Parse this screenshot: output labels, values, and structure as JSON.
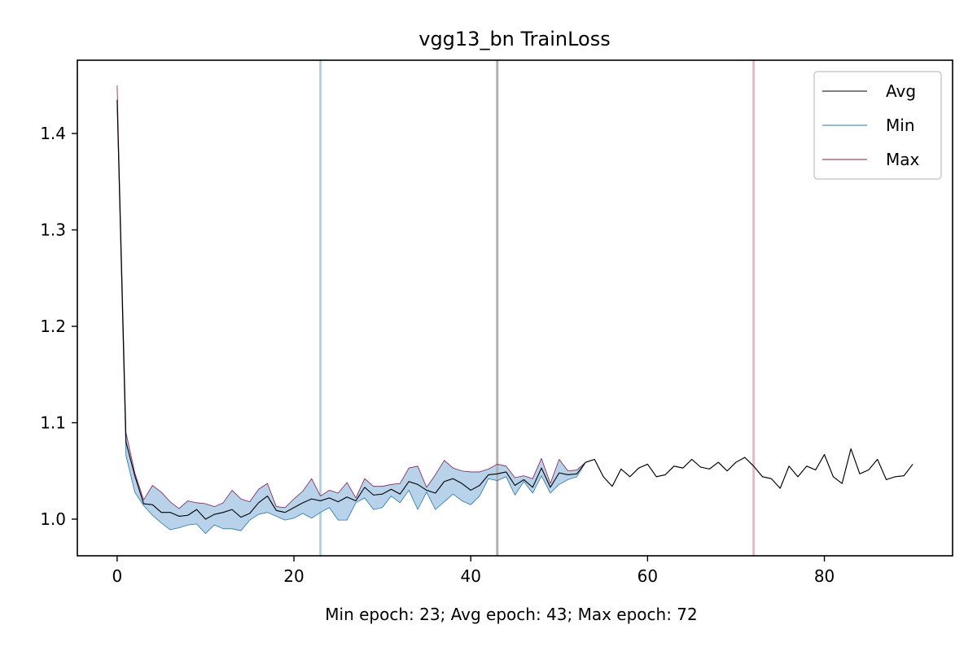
{
  "chart_data": {
    "type": "line",
    "title": "vgg13_bn TrainLoss",
    "xlabel": "Min epoch: 23; Avg epoch: 43; Max epoch: 72",
    "ylabel": "",
    "xlim": [
      -4.5,
      94.5
    ],
    "ylim": [
      0.962,
      1.476
    ],
    "xticks": [
      0,
      20,
      40,
      60,
      80
    ],
    "yticks": [
      1.0,
      1.1,
      1.2,
      1.3,
      1.4
    ],
    "ytick_labels": [
      "1.0",
      "1.1",
      "1.2",
      "1.3",
      "1.4"
    ],
    "grid": false,
    "legend_position": "top-right",
    "colors": {
      "avg": "#000000",
      "min": "#1f77b4",
      "max": "#8b1a4a",
      "band": "#b8d3e9",
      "vline_min": "#b3d1e6",
      "vline_avg": "#b0b0b0",
      "vline_max": "#e6b8c8"
    },
    "vlines": [
      {
        "name": "Min epoch",
        "x": 23
      },
      {
        "name": "Avg epoch",
        "x": 43
      },
      {
        "name": "Max epoch",
        "x": 72
      }
    ],
    "series": [
      {
        "name": "Avg",
        "values": [
          1.435,
          1.08,
          1.045,
          1.016,
          1.015,
          1.007,
          1.007,
          1.003,
          1.004,
          1.01,
          1.0,
          1.005,
          1.007,
          1.01,
          1.002,
          1.006,
          1.017,
          1.024,
          1.009,
          1.007,
          1.012,
          1.017,
          1.021,
          1.019,
          1.022,
          1.018,
          1.023,
          1.019,
          1.033,
          1.025,
          1.026,
          1.031,
          1.026,
          1.039,
          1.036,
          1.03,
          1.027,
          1.039,
          1.042,
          1.037,
          1.03,
          1.035,
          1.046,
          1.047,
          1.049,
          1.035,
          1.041,
          1.033,
          1.053,
          1.033,
          1.048,
          1.046,
          1.047,
          1.059,
          1.062,
          1.044,
          1.034,
          1.052,
          1.044,
          1.053,
          1.057,
          1.044,
          1.046,
          1.055,
          1.053,
          1.062,
          1.054,
          1.052,
          1.059,
          1.05,
          1.059,
          1.064,
          1.055,
          1.044,
          1.042,
          1.032,
          1.055,
          1.044,
          1.055,
          1.051,
          1.067,
          1.044,
          1.037,
          1.073,
          1.047,
          1.051,
          1.062,
          1.041,
          1.044,
          1.045,
          1.057
        ]
      },
      {
        "name": "Min",
        "values": [
          1.432,
          1.066,
          1.028,
          1.014,
          1.004,
          0.996,
          0.989,
          0.991,
          0.994,
          0.995,
          0.985,
          0.994,
          0.99,
          0.99,
          0.988,
          0.999,
          1.005,
          1.007,
          1.003,
          0.999,
          1.001,
          1.006,
          1.001,
          1.007,
          1.012,
          0.999,
          0.999,
          1.017,
          1.022,
          1.01,
          1.012,
          1.024,
          1.017,
          1.03,
          1.01,
          1.028,
          1.01,
          1.018,
          1.026,
          1.019,
          1.015,
          1.024,
          1.042,
          1.04,
          1.044,
          1.025,
          1.039,
          1.027,
          1.045,
          1.027,
          1.036,
          1.041,
          1.044,
          1.059,
          1.062,
          1.044,
          1.034,
          1.052,
          1.044,
          1.053,
          1.057,
          1.044,
          1.046,
          1.055,
          1.053,
          1.062,
          1.054,
          1.052,
          1.059,
          1.05,
          1.059,
          1.064,
          1.055,
          1.044,
          1.042,
          1.032,
          1.055,
          1.044,
          1.055,
          1.051,
          1.067,
          1.044,
          1.037,
          1.073,
          1.047,
          1.051,
          1.062,
          1.041,
          1.044,
          1.045,
          1.057
        ]
      },
      {
        "name": "Max",
        "values": [
          1.45,
          1.09,
          1.048,
          1.02,
          1.035,
          1.028,
          1.018,
          1.011,
          1.019,
          1.017,
          1.016,
          1.013,
          1.017,
          1.03,
          1.021,
          1.018,
          1.031,
          1.037,
          1.013,
          1.012,
          1.021,
          1.029,
          1.042,
          1.024,
          1.03,
          1.027,
          1.038,
          1.022,
          1.042,
          1.034,
          1.034,
          1.036,
          1.037,
          1.053,
          1.055,
          1.033,
          1.046,
          1.061,
          1.053,
          1.05,
          1.049,
          1.049,
          1.052,
          1.057,
          1.055,
          1.043,
          1.045,
          1.042,
          1.063,
          1.037,
          1.062,
          1.05,
          1.051,
          1.059,
          1.062,
          1.044,
          1.034,
          1.052,
          1.044,
          1.053,
          1.057,
          1.044,
          1.046,
          1.055,
          1.053,
          1.062,
          1.054,
          1.052,
          1.059,
          1.05,
          1.059,
          1.064,
          1.055,
          1.044,
          1.042,
          1.032,
          1.055,
          1.044,
          1.055,
          1.051,
          1.067,
          1.044,
          1.037,
          1.073,
          1.047,
          1.051,
          1.062,
          1.041,
          1.044,
          1.045,
          1.057
        ]
      }
    ]
  }
}
